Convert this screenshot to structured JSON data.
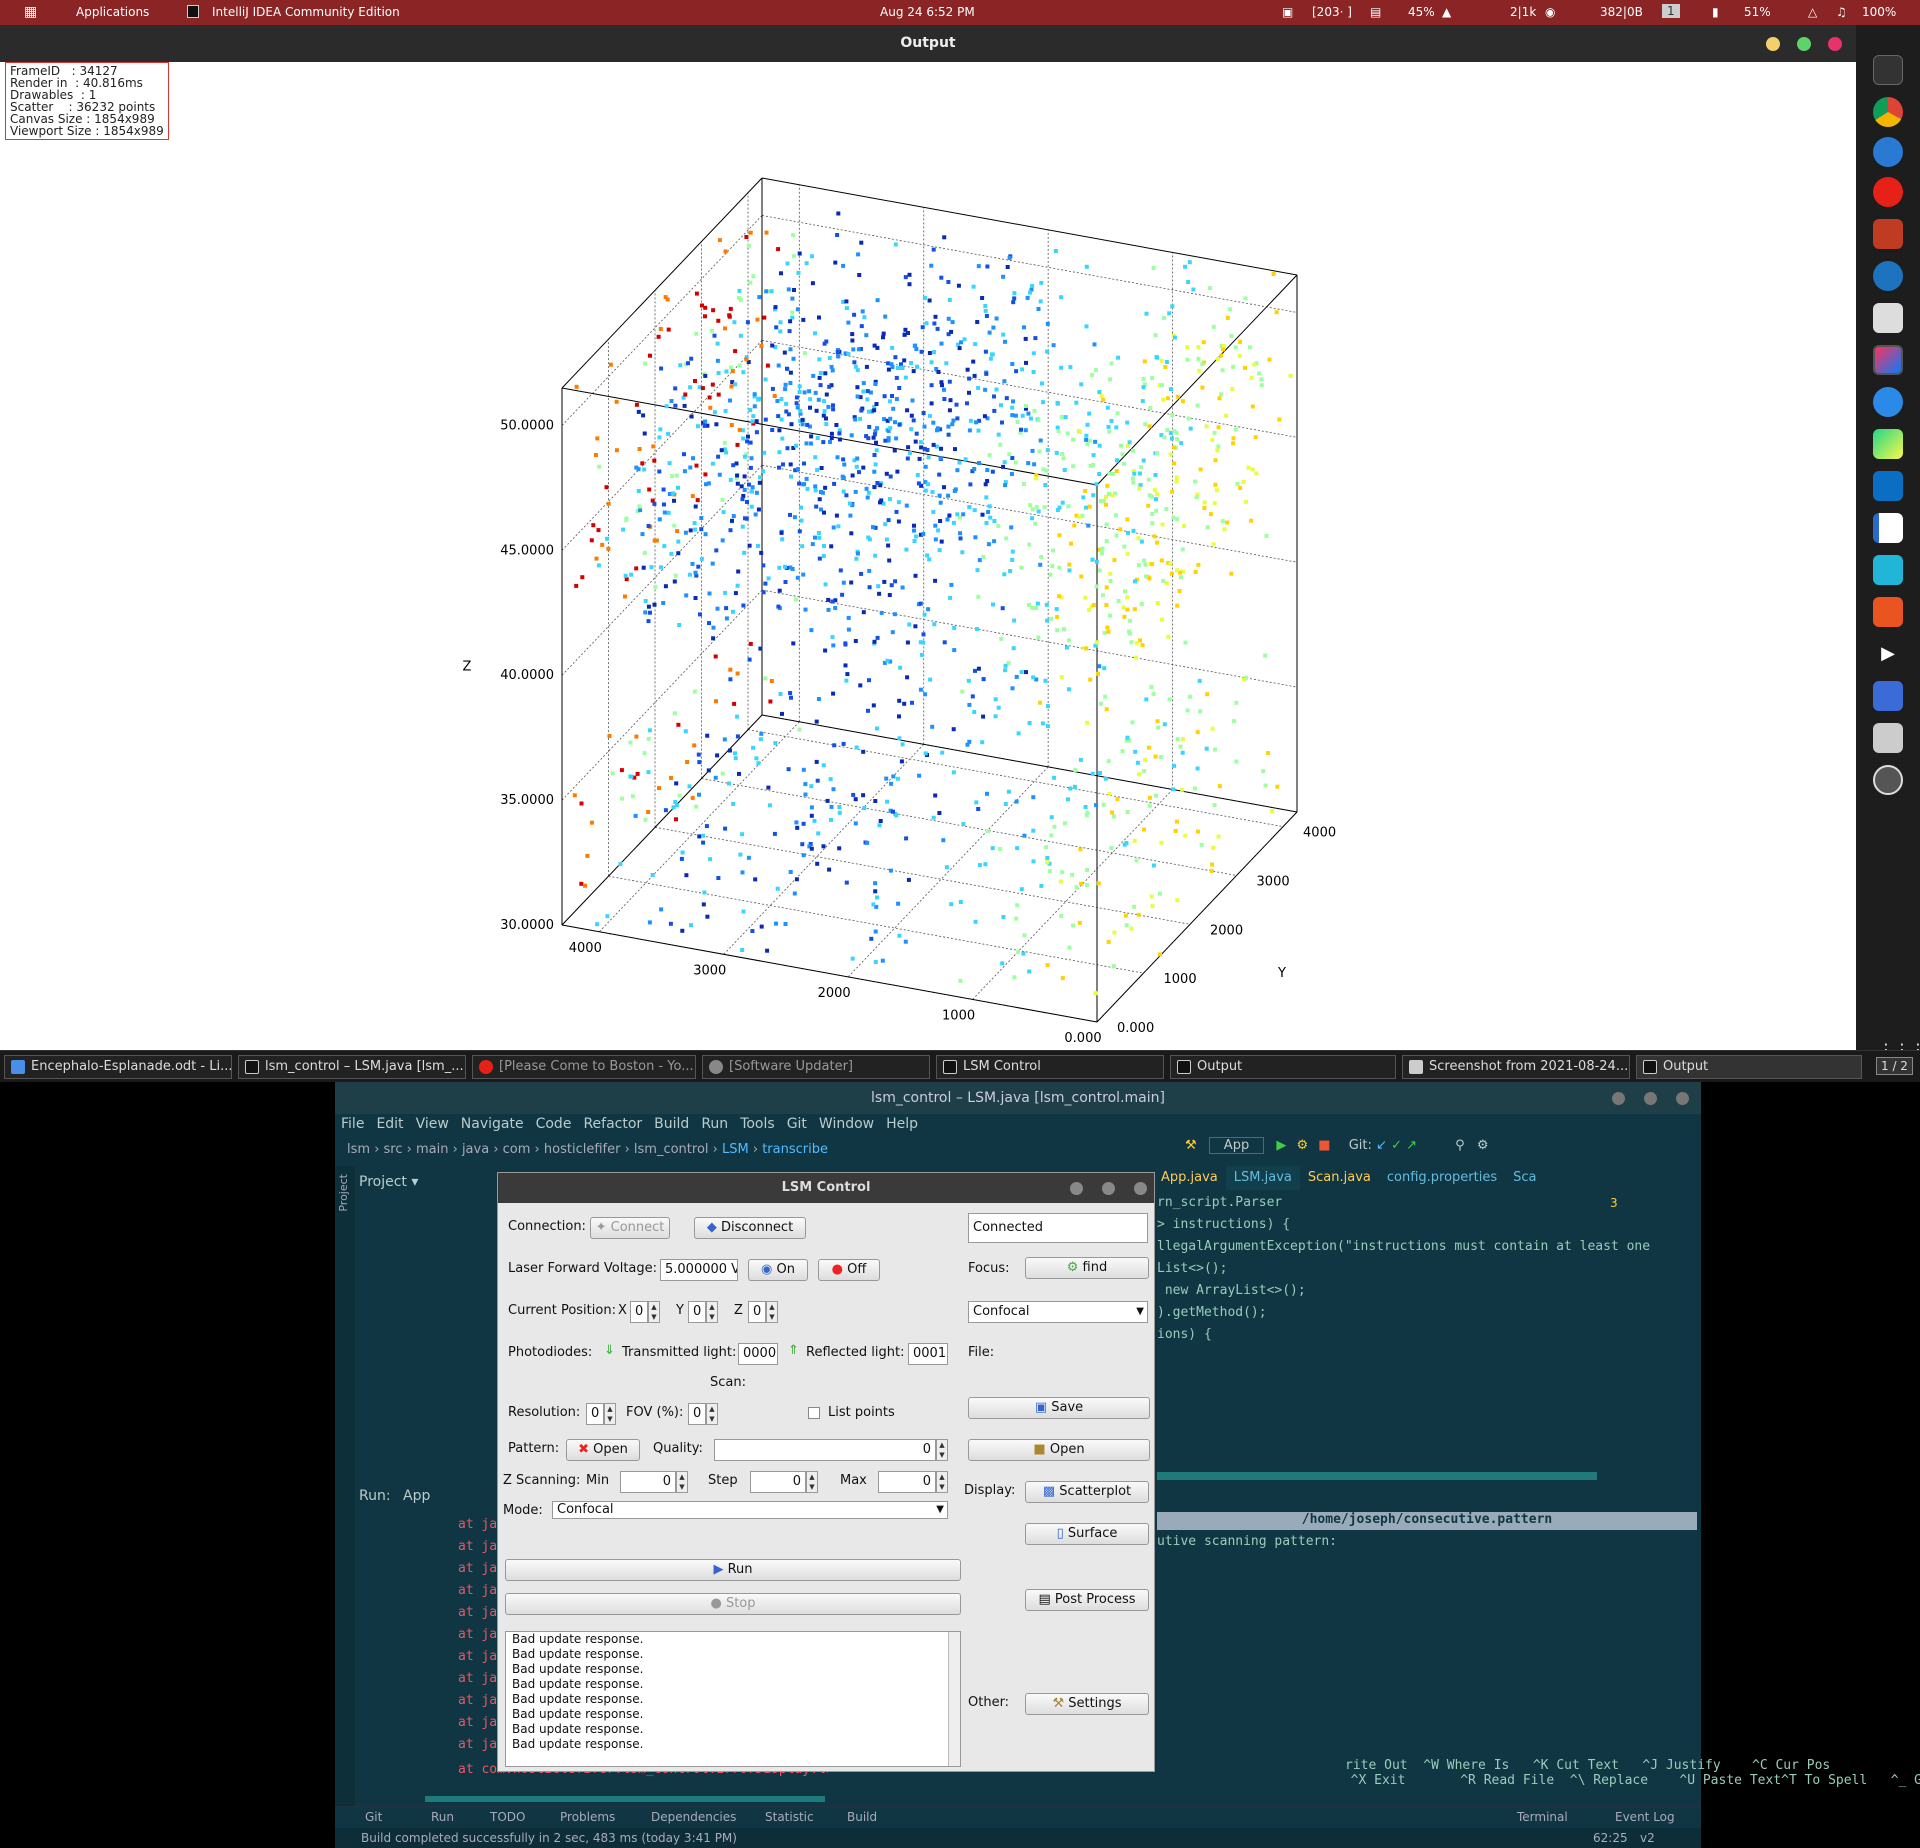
{
  "topbar": {
    "activities": "Applications",
    "app": "IntelliJ IDEA Community Edition",
    "clock": "Aug 24  6:52 PM",
    "cpu": "[203· ]",
    "mem": "45%",
    "net": "2|1k",
    "disk": "382|0B",
    "workspace": "1",
    "battery": "51%",
    "volume": "100%"
  },
  "output_window": {
    "title": "Output",
    "stats": "FrameID   : 34127\nRender in  : 40.816ms\nDrawables  : 1\nScatter    : 36232 points\nCanvas Size : 1854x989\nViewport Size : 1854x989"
  },
  "chart_data": {
    "type": "scatter",
    "dimensions": 3,
    "xlabel": "X",
    "ylabel": "Y",
    "zlabel": "Z",
    "x_ticks": [
      "4000",
      "3000",
      "2000",
      "1000",
      "0.000"
    ],
    "y_ticks": [
      "0.000",
      "1000",
      "2000",
      "3000",
      "4000"
    ],
    "z_ticks": [
      "30.0000",
      "35.0000",
      "40.0000",
      "45.0000",
      "50.0000"
    ],
    "xlim": [
      0,
      4300
    ],
    "ylim": [
      0,
      4300
    ],
    "zlim": [
      30,
      51.5
    ],
    "colormap": [
      "#d40000",
      "#ff7a00",
      "#ffd200",
      "#e6ff3a",
      "#9dffa0",
      "#38d6ff",
      "#1e90ff",
      "#1450e6",
      "#0a2ab4"
    ],
    "point_count": 36232,
    "grid": true,
    "layers": [
      {
        "z": [
          30,
          36.5
        ],
        "density": 0.55
      },
      {
        "z": [
          41.5,
          51.5
        ],
        "density": 0.85
      }
    ]
  },
  "dock": {
    "icons": [
      "terminal-icon",
      "chrome-icon",
      "thunderbird-icon",
      "youtube-music-icon",
      "filezilla-icon",
      "mu-icon",
      "files-icon",
      "intellij-icon",
      "browser-icon",
      "pycharm-icon",
      "vscode-icon",
      "writer-icon",
      "clion-icon",
      "software-center-icon",
      "video-icon",
      "network-icon",
      "screenshot-icon",
      "updater-icon"
    ],
    "workspace": "1 / 2"
  },
  "taskbar": {
    "items": [
      "Encephalo-Esplanade.odt - Li...",
      "lsm_control – LSM.java [lsm_...",
      "[Please Come to Boston - Yo...",
      "[Software Updater]",
      "LSM Control",
      "Output",
      "Screenshot from 2021-08-24...",
      "Output"
    ]
  },
  "ide": {
    "title": "lsm_control – LSM.java [lsm_control.main]",
    "menu": [
      "File",
      "Edit",
      "View",
      "Navigate",
      "Code",
      "Refactor",
      "Build",
      "Run",
      "Tools",
      "Git",
      "Window",
      "Help"
    ],
    "breadcrumbs": [
      "lsm",
      "src",
      "main",
      "java",
      "com",
      "hosticlefifer",
      "lsm_control",
      "LSM",
      "transcribe"
    ],
    "run_config": "App",
    "git_label": "Git:",
    "project_label": "Project",
    "tabs": [
      "App.java",
      "LSM.java",
      "Scan.java",
      "config.properties",
      "Sca"
    ],
    "code_lines": [
      "rn_script.Parser",
      "",
      "",
      "> instructions) {",
      "llegalArgumentException(\"instructions must contain at least one",
      "List<>();",
      " new ArrayList<>();",
      ").getMethod();",
      "ions) {"
    ],
    "warnings": "3",
    "run_label": "Run:",
    "run_tab": "App",
    "stack_prefix": "at ja",
    "stack_last": "at com.hosticlefifer.lsm_control.ErrorDisplay.lambda$alert$0(ErrorDisp",
    "terminal_path": "/home/joseph/consecutive.pattern",
    "terminal_line": "utive scanning pattern:",
    "nano_help": [
      "rite Out  ^W Where Is   ^K Cut Text   ^J Justify    ^C Cur Pos",
      "  ^X Exit       ^R Read File  ^\\ Replace    ^U Paste Text^T To Spell   ^_ Go To Line"
    ],
    "bottom_tabs": [
      "Git",
      "Run",
      "TODO",
      "Problems",
      "Dependencies",
      "Statistic",
      "Build",
      "Terminal",
      "Event Log"
    ],
    "status": "Build completed successfully in 2 sec, 483 ms (today 3:41 PM)",
    "cursor": "62:25",
    "vcs": "v2"
  },
  "lsm": {
    "title": "LSM Control",
    "connection_label": "Connection:",
    "connect": "Connect",
    "disconnect": "Disconnect",
    "status": "Connected",
    "laser_label": "Laser Forward Voltage:",
    "laser_value": "5.000000 V",
    "on": "On",
    "off": "Off",
    "focus_label": "Focus:",
    "find": "find",
    "position_label": "Current Position:",
    "x_label": "X",
    "x_value": "0",
    "y_label": "Y",
    "y_value": "0",
    "z_label": "Z",
    "z_value": "0",
    "mode_select": "Confocal",
    "photodiodes_label": "Photodiodes:",
    "transmitted_label": "Transmitted light:",
    "transmitted_value": "0000",
    "reflected_label": "Reflected light:",
    "reflected_value": "0001",
    "file_label": "File:",
    "scan_label": "Scan:",
    "save": "Save",
    "resolution_label": "Resolution:",
    "resolution_value": "0",
    "fov_label": "FOV (%):",
    "fov_value": "0",
    "list_points": "List points",
    "pattern_label": "Pattern:",
    "pattern_open": "Open",
    "quality_label": "Quality:",
    "quality_value": "0",
    "file_open": "Open",
    "zscan_label": "Z Scanning:",
    "min_label": "Min",
    "min_value": "0",
    "step_label": "Step",
    "step_value": "0",
    "max_label": "Max",
    "max_value": "0",
    "display_label": "Display:",
    "scatterplot": "Scatterplot",
    "mode_label": "Mode:",
    "mode_value": "Confocal",
    "surface": "Surface",
    "run": "Run",
    "stop": "Stop",
    "post_process": "Post Process",
    "other_label": "Other:",
    "settings": "Settings",
    "log": [
      "Bad update response.",
      "Bad update response.",
      "Bad update response.",
      "Bad update response.",
      "Bad update response.",
      "Bad update response.",
      "Bad update response.",
      "Bad update response."
    ]
  }
}
